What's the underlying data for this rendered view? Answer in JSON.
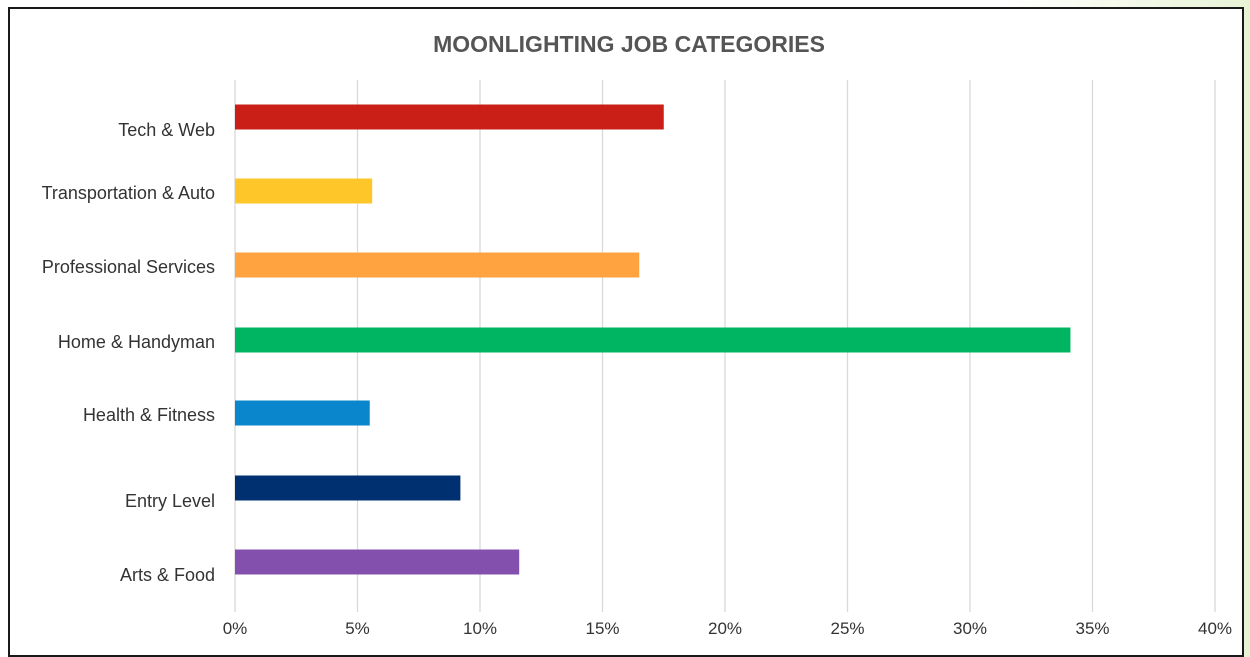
{
  "chart_data": {
    "type": "bar",
    "orientation": "horizontal",
    "title": "MOONLIGHTING JOB CATEGORIES",
    "categories": [
      "Tech & Web",
      "Transportation & Auto",
      "Professional Services",
      "Home & Handyman",
      "Health & Fitness",
      "Entry Level",
      "Arts & Food"
    ],
    "values": [
      17.5,
      5.6,
      16.5,
      34.1,
      5.5,
      9.2,
      11.6
    ],
    "colors": [
      "#c91f16",
      "#ffc629",
      "#ffa340",
      "#00b562",
      "#0a86cc",
      "#00306f",
      "#8350ad"
    ],
    "value_unit": "%",
    "xlim": [
      0,
      40
    ],
    "xticks": [
      "0%",
      "5%",
      "10%",
      "15%",
      "20%",
      "25%",
      "30%",
      "35%",
      "40%"
    ],
    "grid": true,
    "legend": "none"
  }
}
